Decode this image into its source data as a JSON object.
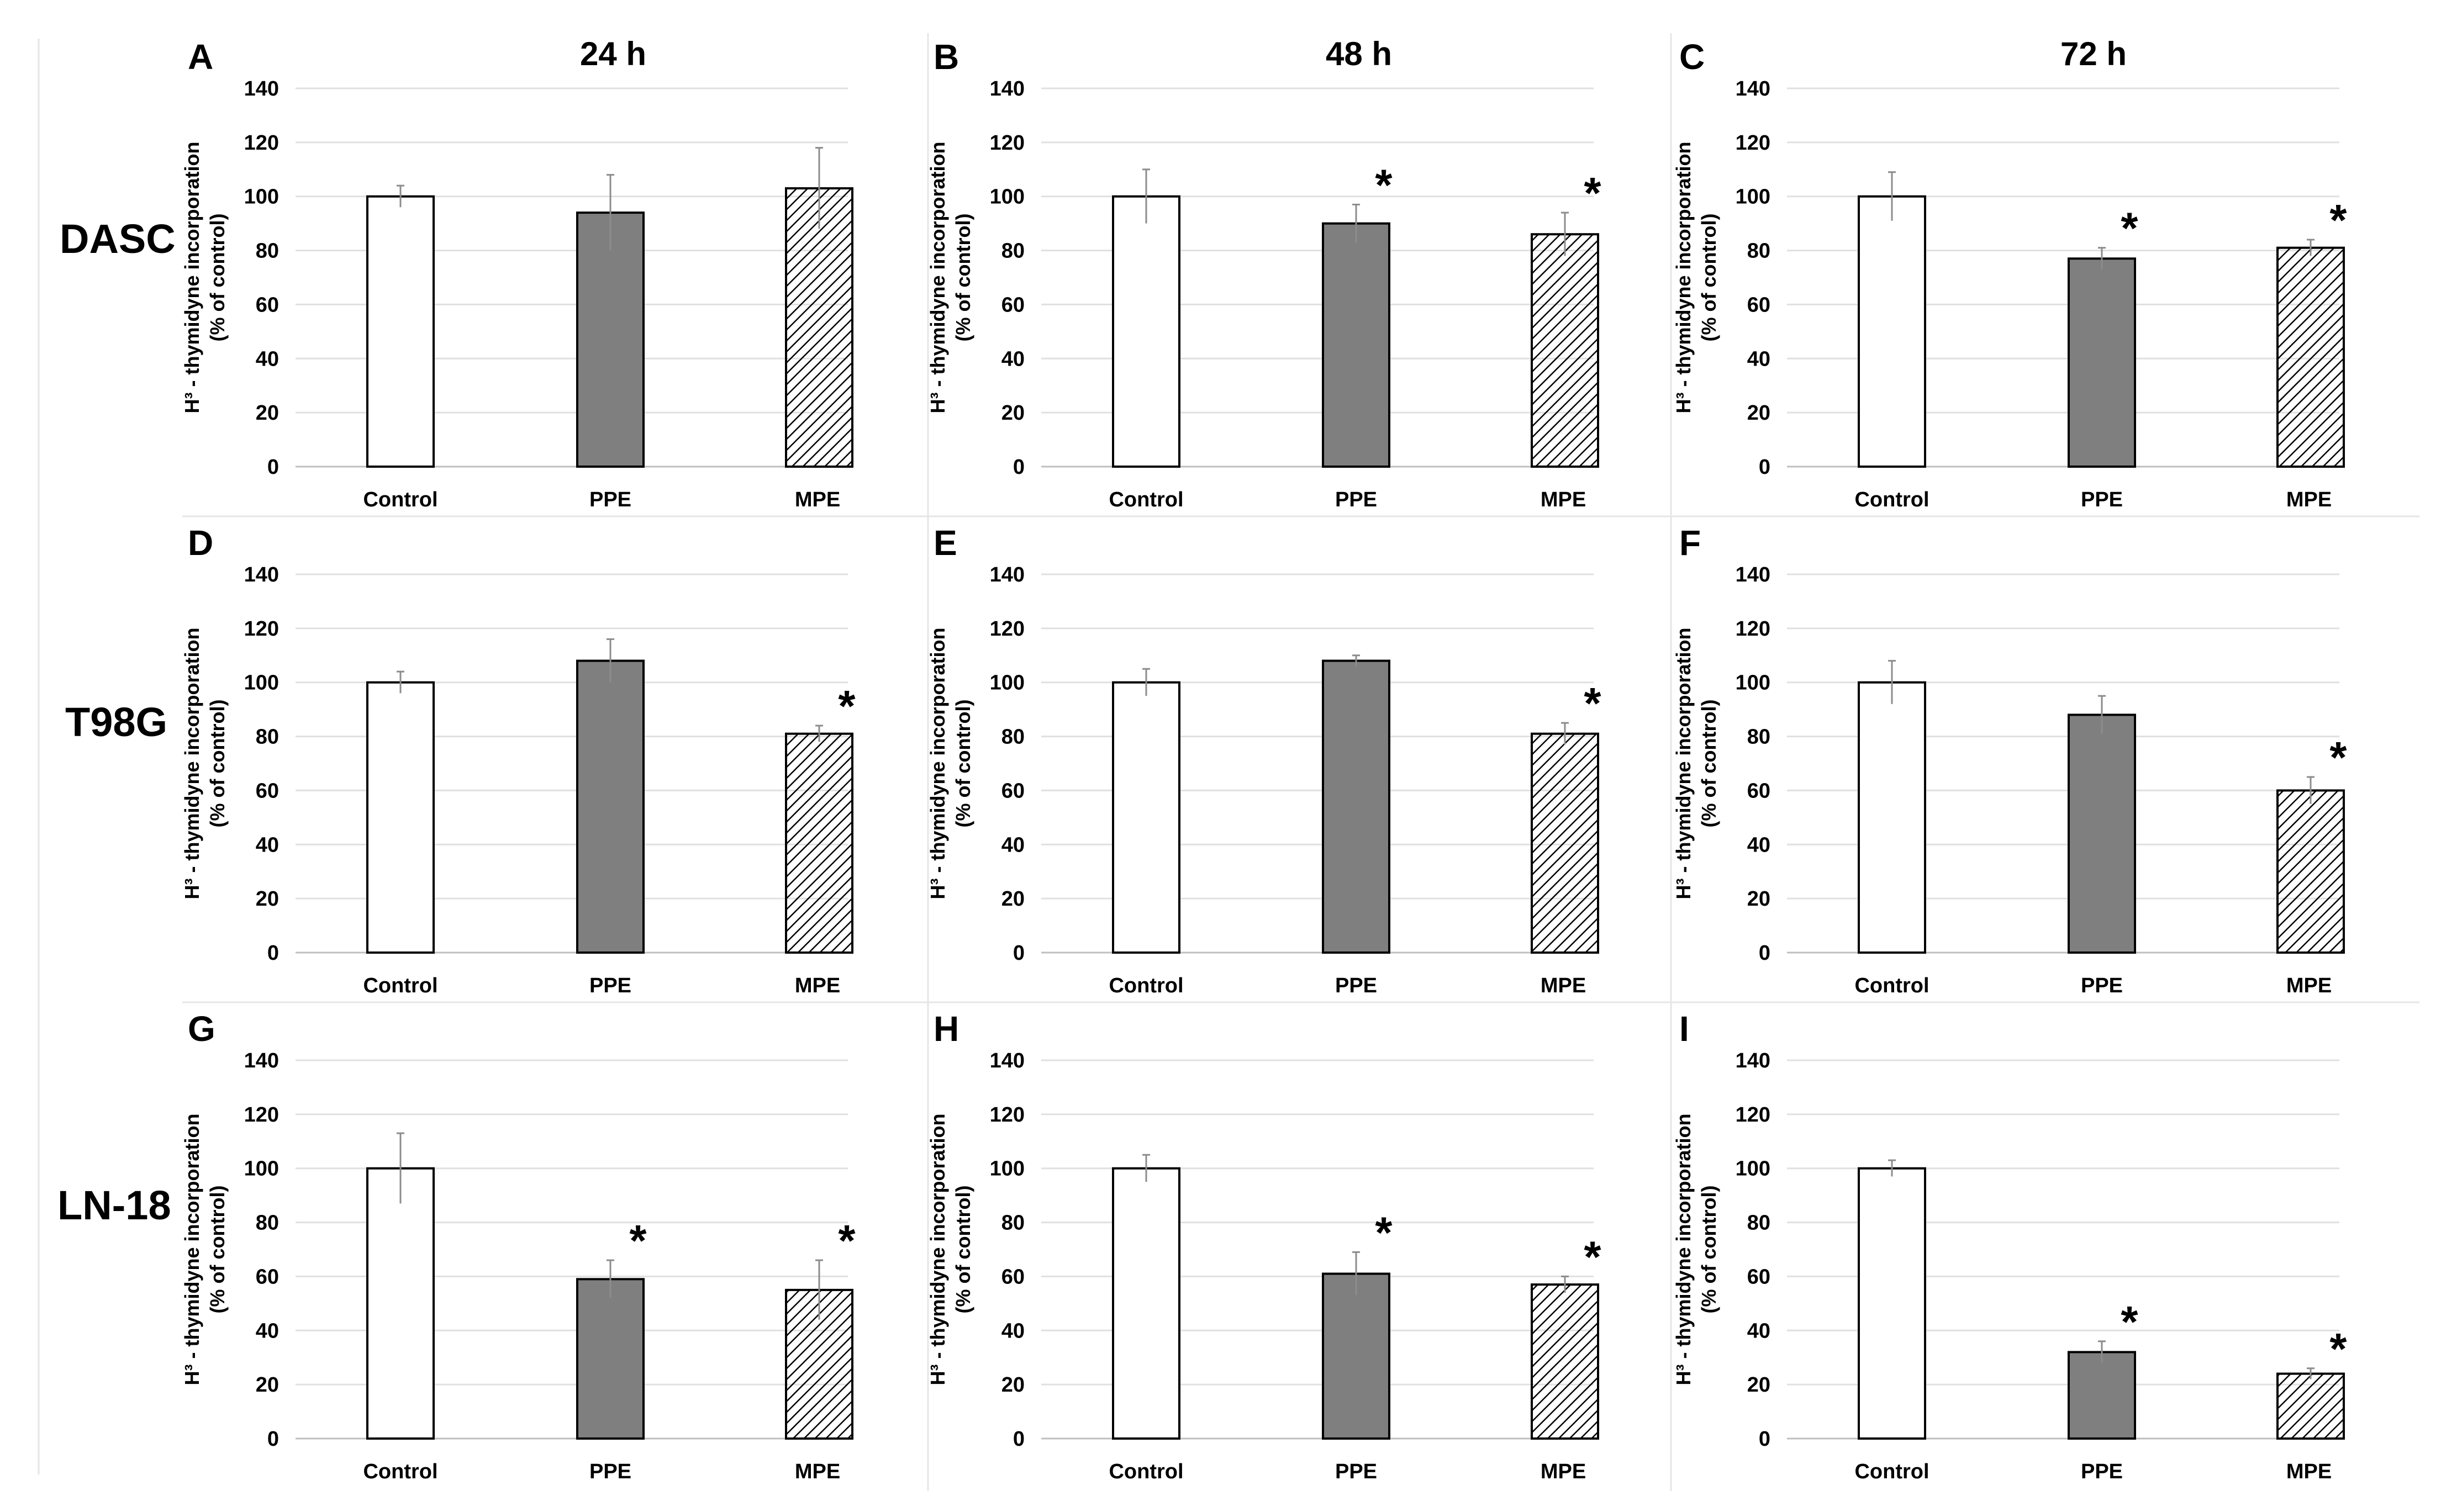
{
  "figure": {
    "column_titles": [
      "24 h",
      "48 h",
      "72 h"
    ],
    "row_labels": [
      "DASC",
      "T98G",
      "LN-18"
    ],
    "y_axis_label_line1": "H³ - thymidyne incorporation",
    "y_axis_label_line2": "(% of control)",
    "significance_marker": "*"
  },
  "chart_data": [
    {
      "type": "bar",
      "panel": "A",
      "cell_line": "DASC",
      "time": "24 h",
      "categories": [
        "Control",
        "PPE",
        "MPE"
      ],
      "values": [
        100,
        94,
        103
      ],
      "errors": [
        4,
        14,
        15
      ],
      "significant": [
        false,
        false,
        false
      ],
      "ylim": [
        0,
        140
      ],
      "yticks": [
        "0",
        "20",
        "40",
        "60",
        "80",
        "100",
        "120",
        "140"
      ],
      "ylabel": "H³ - thymidyne incorporation (% of control)"
    },
    {
      "type": "bar",
      "panel": "B",
      "cell_line": "DASC",
      "time": "48 h",
      "categories": [
        "Control",
        "PPE",
        "MPE"
      ],
      "values": [
        100,
        90,
        86
      ],
      "errors": [
        10,
        7,
        8
      ],
      "significant": [
        false,
        true,
        true
      ],
      "ylim": [
        0,
        140
      ],
      "yticks": [
        "0",
        "20",
        "40",
        "60",
        "80",
        "100",
        "120",
        "140"
      ],
      "ylabel": "H³ - thymidyne incorporation (% of control)"
    },
    {
      "type": "bar",
      "panel": "C",
      "cell_line": "DASC",
      "time": "72 h",
      "categories": [
        "Control",
        "PPE",
        "MPE"
      ],
      "values": [
        100,
        77,
        81
      ],
      "errors": [
        9,
        4,
        3
      ],
      "significant": [
        false,
        true,
        true
      ],
      "ylim": [
        0,
        140
      ],
      "yticks": [
        "0",
        "20",
        "40",
        "60",
        "80",
        "100",
        "120",
        "140"
      ],
      "ylabel": "H³ - thymidyne incorporation (% of control)"
    },
    {
      "type": "bar",
      "panel": "D",
      "cell_line": "T98G",
      "time": "24 h",
      "categories": [
        "Control",
        "PPE",
        "MPE"
      ],
      "values": [
        100,
        108,
        81
      ],
      "errors": [
        4,
        8,
        3
      ],
      "significant": [
        false,
        false,
        true
      ],
      "ylim": [
        0,
        140
      ],
      "yticks": [
        "0",
        "20",
        "40",
        "60",
        "80",
        "100",
        "120",
        "140"
      ],
      "ylabel": "H³ - thymidyne incorporation (% of control)"
    },
    {
      "type": "bar",
      "panel": "E",
      "cell_line": "T98G",
      "time": "48 h",
      "categories": [
        "Control",
        "PPE",
        "MPE"
      ],
      "values": [
        100,
        108,
        81
      ],
      "errors": [
        5,
        2,
        4
      ],
      "significant": [
        false,
        false,
        true
      ],
      "ylim": [
        0,
        140
      ],
      "yticks": [
        "0",
        "20",
        "40",
        "60",
        "80",
        "100",
        "120",
        "140"
      ],
      "ylabel": "H³ - thymidyne incorporation (% of control)"
    },
    {
      "type": "bar",
      "panel": "F",
      "cell_line": "T98G",
      "time": "72 h",
      "categories": [
        "Control",
        "PPE",
        "MPE"
      ],
      "values": [
        100,
        88,
        60
      ],
      "errors": [
        8,
        7,
        5
      ],
      "significant": [
        false,
        false,
        true
      ],
      "ylim": [
        0,
        140
      ],
      "yticks": [
        "0",
        "20",
        "40",
        "60",
        "80",
        "100",
        "120",
        "140"
      ],
      "ylabel": "H³ - thymidyne incorporation (% of control)"
    },
    {
      "type": "bar",
      "panel": "G",
      "cell_line": "LN-18",
      "time": "24 h",
      "categories": [
        "Control",
        "PPE",
        "MPE"
      ],
      "values": [
        100,
        59,
        55
      ],
      "errors": [
        13,
        7,
        11
      ],
      "significant": [
        false,
        true,
        true
      ],
      "ylim": [
        0,
        140
      ],
      "yticks": [
        "0",
        "20",
        "40",
        "60",
        "80",
        "100",
        "120",
        "140"
      ],
      "ylabel": "H³ - thymidyne incorporation (% of control)"
    },
    {
      "type": "bar",
      "panel": "H",
      "cell_line": "LN-18",
      "time": "48 h",
      "categories": [
        "Control",
        "PPE",
        "MPE"
      ],
      "values": [
        100,
        61,
        57
      ],
      "errors": [
        5,
        8,
        3
      ],
      "significant": [
        false,
        true,
        true
      ],
      "ylim": [
        0,
        140
      ],
      "yticks": [
        "0",
        "20",
        "40",
        "60",
        "80",
        "100",
        "120",
        "140"
      ],
      "ylabel": "H³ - thymidyne incorporation (% of control)"
    },
    {
      "type": "bar",
      "panel": "I",
      "cell_line": "LN-18",
      "time": "72 h",
      "categories": [
        "Control",
        "PPE",
        "MPE"
      ],
      "values": [
        100,
        32,
        24
      ],
      "errors": [
        3,
        4,
        2
      ],
      "significant": [
        false,
        true,
        true
      ],
      "ylim": [
        0,
        140
      ],
      "yticks": [
        "0",
        "20",
        "40",
        "60",
        "80",
        "100",
        "120",
        "140"
      ],
      "ylabel": "H³ - thymidyne incorporation (% of control)"
    }
  ],
  "colors": {
    "control_fill": "#ffffff",
    "ppe_fill": "#7f7f7f",
    "mpe_fill": "#ffffff",
    "mpe_hatch": "#000000",
    "bar_stroke": "#000000",
    "grid": "#e0e0e0",
    "error_bar": "#8c8c8c",
    "text": "#000000"
  }
}
